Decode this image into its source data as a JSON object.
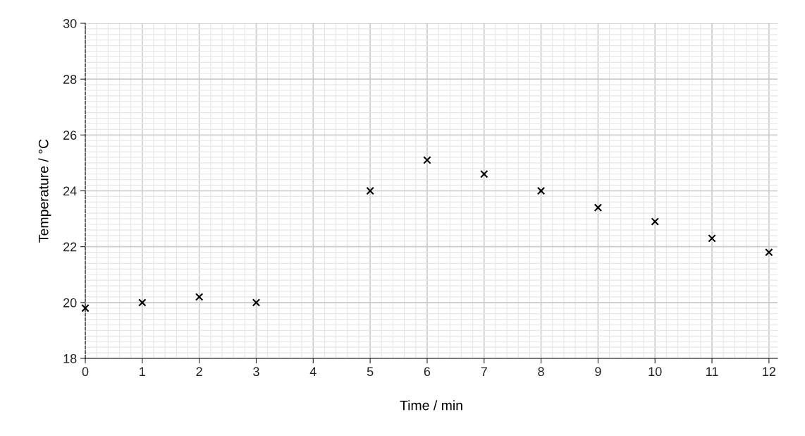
{
  "chart_data": {
    "type": "scatter",
    "xlabel": "Time / min",
    "ylabel": "Temperature / °C",
    "x": [
      0,
      1,
      2,
      3,
      5,
      6,
      7,
      8,
      9,
      10,
      11,
      12
    ],
    "series": [
      {
        "color": "#000000",
        "values": [
          19.8,
          20.0,
          20.2,
          20.0,
          24.0,
          25.1,
          24.6,
          24.0,
          23.4,
          22.9,
          22.3,
          21.8
        ]
      }
    ],
    "xlim": [
      0,
      12.15
    ],
    "ylim": [
      18,
      30
    ],
    "xticks": [
      0,
      1,
      2,
      3,
      4,
      5,
      6,
      7,
      8,
      9,
      10,
      11,
      12
    ],
    "yticks": [
      18,
      20,
      22,
      24,
      26,
      28,
      30
    ],
    "grid": true,
    "marker": "cross"
  }
}
